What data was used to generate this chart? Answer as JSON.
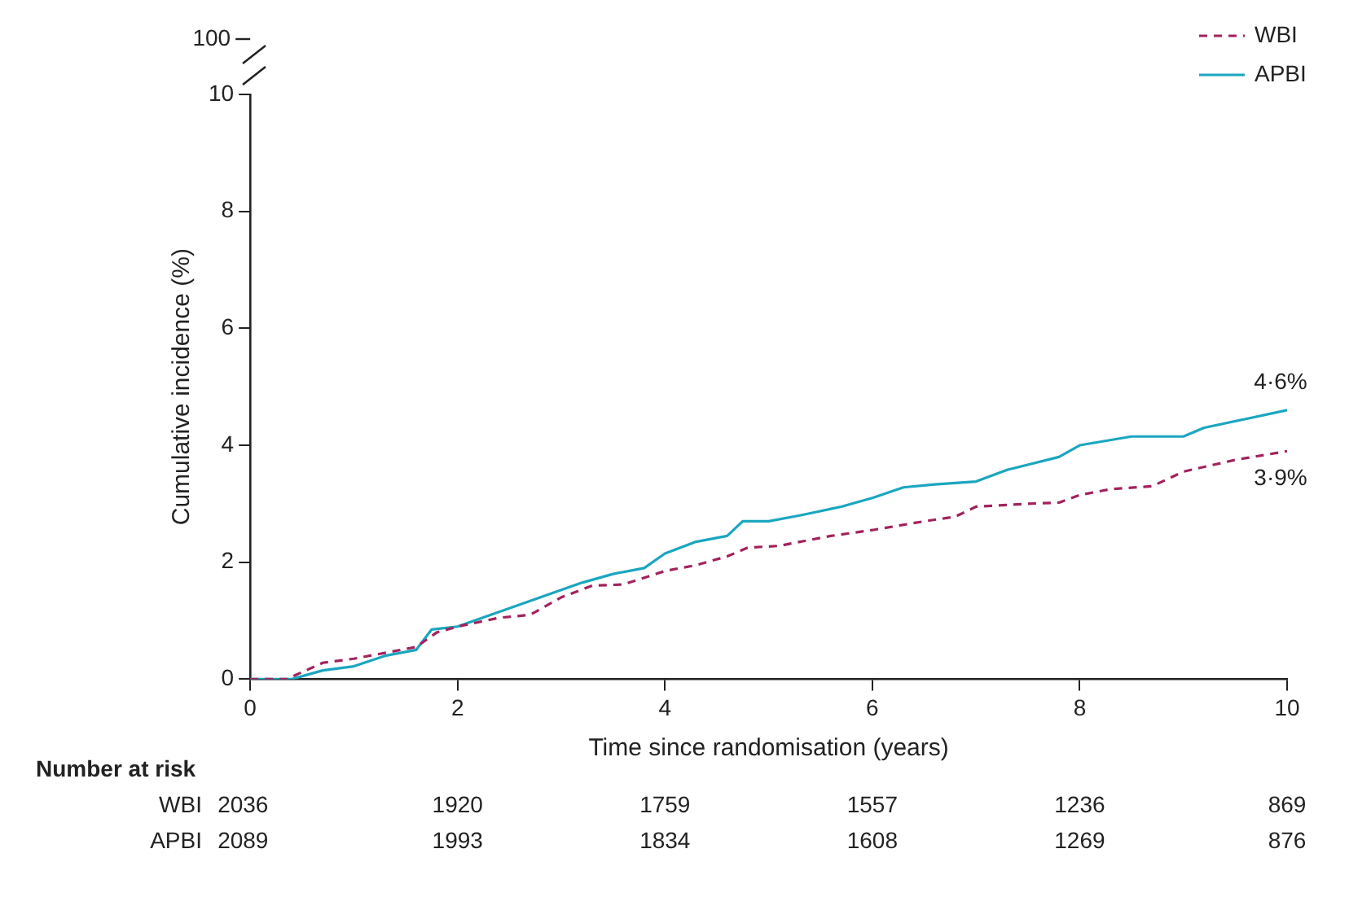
{
  "chart_data": {
    "type": "line",
    "xlabel": "Time since randomisation (years)",
    "ylabel": "Cumulative incidence (%)",
    "xlim": [
      0,
      10
    ],
    "xticks": [
      0,
      2,
      4,
      6,
      8,
      10
    ],
    "ylim": [
      0,
      10
    ],
    "yticks": [
      0,
      2,
      4,
      6,
      8,
      10
    ],
    "grid": false,
    "legend": "top right",
    "marker": "none",
    "series": [
      {
        "name": "WBI",
        "color": "#a3225c",
        "line_style": "dashed",
        "x": [
          0,
          0.35,
          0.7,
          1.0,
          1.3,
          1.6,
          1.8,
          2.0,
          2.4,
          2.7,
          3.0,
          3.3,
          3.6,
          4.0,
          4.3,
          4.6,
          4.8,
          5.1,
          5.6,
          6.0,
          6.5,
          6.8,
          7.0,
          7.5,
          7.8,
          8.0,
          8.3,
          8.7,
          9.0,
          9.5,
          10
        ],
        "values": [
          0,
          0,
          0.28,
          0.35,
          0.45,
          0.55,
          0.8,
          0.9,
          1.05,
          1.1,
          1.4,
          1.6,
          1.62,
          1.85,
          1.95,
          2.1,
          2.25,
          2.28,
          2.45,
          2.55,
          2.7,
          2.78,
          2.95,
          3.0,
          3.02,
          3.15,
          3.25,
          3.3,
          3.55,
          3.75,
          3.9
        ]
      },
      {
        "name": "APBI",
        "color": "#1aa6c0",
        "line_style": "solid",
        "x": [
          0,
          0.4,
          0.7,
          1.0,
          1.3,
          1.6,
          1.75,
          2.0,
          2.4,
          2.8,
          3.2,
          3.5,
          3.8,
          4.0,
          4.3,
          4.6,
          4.75,
          5.0,
          5.3,
          5.7,
          6.0,
          6.3,
          6.6,
          7.0,
          7.3,
          7.8,
          8.0,
          8.5,
          9.0,
          9.2,
          9.6,
          10
        ],
        "values": [
          0,
          0,
          0.15,
          0.22,
          0.4,
          0.5,
          0.85,
          0.9,
          1.15,
          1.4,
          1.65,
          1.8,
          1.9,
          2.15,
          2.35,
          2.45,
          2.7,
          2.7,
          2.8,
          2.95,
          3.1,
          3.28,
          3.33,
          3.38,
          3.58,
          3.8,
          4.0,
          4.15,
          4.15,
          4.3,
          4.45,
          4.6
        ]
      }
    ],
    "annotations": [
      "100",
      {
        "text": "4·6%",
        "x": 10,
        "y": 4.6
      },
      {
        "text": "3·9%",
        "x": 10,
        "y": 3.9
      },
      "Number at risk",
      "WBI",
      "2036",
      "1920",
      "1759",
      "1557",
      "1236",
      "869",
      "APBI",
      "2089",
      "1993",
      "1834",
      "1608",
      "1269",
      "876"
    ]
  }
}
